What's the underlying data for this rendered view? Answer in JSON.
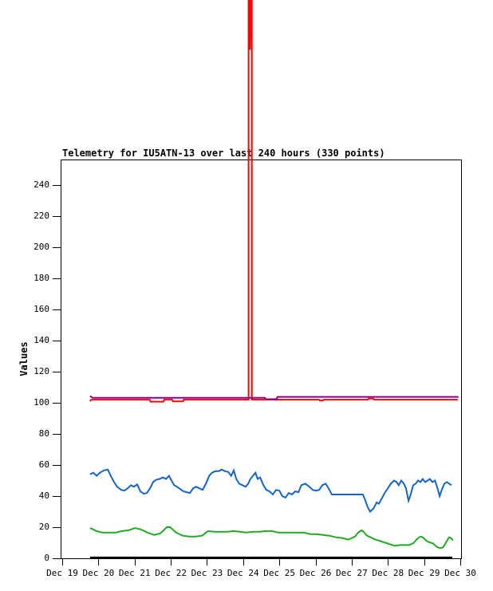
{
  "page": {
    "background": "#ffffff",
    "title": "Telemetry for IU5ATN-13 over last 240 hours (330 points)"
  },
  "chart_data": {
    "type": "line",
    "title": "Telemetry for IU5ATN-13 over last 240 hours (330 points)",
    "xlabel": "",
    "ylabel": "Values",
    "grid": false,
    "legend": "none",
    "ylim": [
      0,
      256.4
    ],
    "yticks": [
      0,
      20,
      40,
      60,
      80,
      100,
      120,
      140,
      160,
      180,
      200,
      220,
      240
    ],
    "xticks": [
      "Dec 19",
      "Dec 20",
      "Dec 21",
      "Dec 22",
      "Dec 23",
      "Dec 24",
      "Dec 25",
      "Dec 26",
      "Dec 27",
      "Dec 28",
      "Dec 29",
      "Dec 30"
    ],
    "x_unit": "days since Dec 19",
    "note_offscale": "red series spikes off-scale above chart top near Dec 24.2",
    "series": [
      {
        "name": "series-black",
        "color": "#000000",
        "width": 3,
        "points": [
          [
            0.77,
            0.3
          ],
          [
            10.78,
            0.3
          ]
        ]
      },
      {
        "name": "series-blue",
        "color": "#1565c8",
        "width": 2,
        "points": [
          [
            0.77,
            54
          ],
          [
            0.86,
            55
          ],
          [
            0.95,
            53
          ],
          [
            1.04,
            55
          ],
          [
            1.15,
            56.5
          ],
          [
            1.26,
            57
          ],
          [
            1.34,
            53
          ],
          [
            1.43,
            49
          ],
          [
            1.52,
            46
          ],
          [
            1.63,
            44
          ],
          [
            1.72,
            43.5
          ],
          [
            1.81,
            45
          ],
          [
            1.9,
            47
          ],
          [
            1.98,
            46
          ],
          [
            2.07,
            47.5
          ],
          [
            2.16,
            43
          ],
          [
            2.25,
            41.5
          ],
          [
            2.34,
            42
          ],
          [
            2.43,
            45
          ],
          [
            2.51,
            49
          ],
          [
            2.6,
            50.5
          ],
          [
            2.69,
            51
          ],
          [
            2.78,
            52
          ],
          [
            2.87,
            51
          ],
          [
            2.95,
            53
          ],
          [
            3.02,
            50
          ],
          [
            3.09,
            47
          ],
          [
            3.17,
            46
          ],
          [
            3.26,
            44.5
          ],
          [
            3.35,
            43
          ],
          [
            3.44,
            42.5
          ],
          [
            3.53,
            42
          ],
          [
            3.62,
            45
          ],
          [
            3.7,
            46
          ],
          [
            3.79,
            45
          ],
          [
            3.88,
            44
          ],
          [
            3.97,
            48
          ],
          [
            4.06,
            53
          ],
          [
            4.14,
            55
          ],
          [
            4.23,
            56
          ],
          [
            4.32,
            56
          ],
          [
            4.41,
            57
          ],
          [
            4.5,
            56
          ],
          [
            4.59,
            55.5
          ],
          [
            4.67,
            53
          ],
          [
            4.74,
            56.5
          ],
          [
            4.81,
            51
          ],
          [
            4.89,
            48
          ],
          [
            4.98,
            47
          ],
          [
            5.07,
            46
          ],
          [
            5.14,
            48
          ],
          [
            5.2,
            51
          ],
          [
            5.27,
            53
          ],
          [
            5.34,
            55
          ],
          [
            5.4,
            51
          ],
          [
            5.47,
            52
          ],
          [
            5.56,
            47
          ],
          [
            5.64,
            44
          ],
          [
            5.73,
            43
          ],
          [
            5.82,
            41
          ],
          [
            5.91,
            44
          ],
          [
            6,
            43.5
          ],
          [
            6.08,
            40
          ],
          [
            6.17,
            39
          ],
          [
            6.26,
            42
          ],
          [
            6.35,
            41
          ],
          [
            6.44,
            43
          ],
          [
            6.53,
            42.5
          ],
          [
            6.61,
            47
          ],
          [
            6.72,
            48
          ],
          [
            6.83,
            46
          ],
          [
            6.92,
            44
          ],
          [
            7.01,
            43.5
          ],
          [
            7.1,
            44
          ],
          [
            7.19,
            47
          ],
          [
            7.28,
            48
          ],
          [
            7.36,
            45
          ],
          [
            7.45,
            41
          ],
          [
            8.31,
            41
          ],
          [
            8.38,
            37
          ],
          [
            8.44,
            33
          ],
          [
            8.51,
            30
          ],
          [
            8.6,
            32
          ],
          [
            8.69,
            36
          ],
          [
            8.75,
            35
          ],
          [
            8.82,
            38
          ],
          [
            8.91,
            42
          ],
          [
            9,
            45
          ],
          [
            9.08,
            48
          ],
          [
            9.17,
            50
          ],
          [
            9.24,
            49
          ],
          [
            9.3,
            47
          ],
          [
            9.37,
            50
          ],
          [
            9.44,
            48
          ],
          [
            9.5,
            45
          ],
          [
            9.57,
            37
          ],
          [
            9.63,
            41
          ],
          [
            9.7,
            47
          ],
          [
            9.77,
            48
          ],
          [
            9.83,
            50
          ],
          [
            9.9,
            49
          ],
          [
            9.96,
            51
          ],
          [
            10.03,
            49
          ],
          [
            10.1,
            50
          ],
          [
            10.16,
            51
          ],
          [
            10.23,
            49
          ],
          [
            10.3,
            50
          ],
          [
            10.36,
            46
          ],
          [
            10.43,
            40
          ],
          [
            10.49,
            44
          ],
          [
            10.56,
            48
          ],
          [
            10.63,
            49
          ],
          [
            10.69,
            48
          ],
          [
            10.76,
            47
          ]
        ]
      },
      {
        "name": "series-green",
        "color": "#22aa22",
        "width": 2,
        "points": [
          [
            0.77,
            19.5
          ],
          [
            0.95,
            17.5
          ],
          [
            1.12,
            16.5
          ],
          [
            1.3,
            16.5
          ],
          [
            1.48,
            16.5
          ],
          [
            1.65,
            17.5
          ],
          [
            1.83,
            18
          ],
          [
            2.01,
            19.5
          ],
          [
            2.18,
            18.5
          ],
          [
            2.36,
            16.5
          ],
          [
            2.54,
            15
          ],
          [
            2.71,
            16
          ],
          [
            2.89,
            20
          ],
          [
            2.98,
            20
          ],
          [
            3.15,
            16.5
          ],
          [
            3.33,
            14.5
          ],
          [
            3.51,
            14
          ],
          [
            3.68,
            14
          ],
          [
            3.86,
            14.5
          ],
          [
            4.03,
            17.5
          ],
          [
            4.21,
            17
          ],
          [
            4.39,
            17
          ],
          [
            4.56,
            17
          ],
          [
            4.74,
            17.5
          ],
          [
            4.92,
            17
          ],
          [
            5.09,
            16.5
          ],
          [
            5.27,
            17
          ],
          [
            5.45,
            17
          ],
          [
            5.62,
            17.5
          ],
          [
            5.8,
            17.5
          ],
          [
            5.97,
            16.5
          ],
          [
            6.15,
            16.5
          ],
          [
            6.33,
            16.5
          ],
          [
            6.5,
            16.5
          ],
          [
            6.68,
            16.5
          ],
          [
            6.86,
            15.5
          ],
          [
            7.03,
            15.5
          ],
          [
            7.21,
            15
          ],
          [
            7.39,
            14.5
          ],
          [
            7.56,
            13.5
          ],
          [
            7.74,
            13
          ],
          [
            7.91,
            12
          ],
          [
            8.09,
            14
          ],
          [
            8.18,
            16.5
          ],
          [
            8.27,
            18
          ],
          [
            8.33,
            17
          ],
          [
            8.4,
            15
          ],
          [
            8.47,
            14
          ],
          [
            8.53,
            13.5
          ],
          [
            8.6,
            12.5
          ],
          [
            8.66,
            12
          ],
          [
            8.73,
            11.5
          ],
          [
            8.8,
            11
          ],
          [
            8.86,
            10.5
          ],
          [
            8.93,
            10
          ],
          [
            9,
            9.5
          ],
          [
            9.06,
            9
          ],
          [
            9.13,
            8.5
          ],
          [
            9.19,
            8
          ],
          [
            9.33,
            8.5
          ],
          [
            9.46,
            8.5
          ],
          [
            9.59,
            8.5
          ],
          [
            9.72,
            10
          ],
          [
            9.79,
            12
          ],
          [
            9.86,
            13.5
          ],
          [
            9.92,
            14
          ],
          [
            9.99,
            13
          ],
          [
            10.05,
            11.5
          ],
          [
            10.12,
            10.5
          ],
          [
            10.19,
            10
          ],
          [
            10.25,
            9.5
          ],
          [
            10.32,
            8
          ],
          [
            10.38,
            7
          ],
          [
            10.45,
            6.5
          ],
          [
            10.52,
            7
          ],
          [
            10.58,
            9
          ],
          [
            10.65,
            12
          ],
          [
            10.69,
            13.5
          ],
          [
            10.74,
            13
          ],
          [
            10.8,
            11.5
          ]
        ]
      },
      {
        "name": "series-red",
        "color": "#ff0000",
        "width": 2,
        "points": [
          [
            0.77,
            101
          ],
          [
            0.8,
            102
          ],
          [
            2.42,
            102
          ],
          [
            2.44,
            100.7
          ],
          [
            2.8,
            100.7
          ],
          [
            2.82,
            102
          ],
          [
            3.04,
            102
          ],
          [
            3.06,
            100.9
          ],
          [
            3.34,
            100.9
          ],
          [
            3.36,
            102
          ],
          [
            5.15,
            102
          ],
          [
            5.15,
            395
          ],
          [
            5.19,
            327
          ],
          [
            5.24,
            395
          ],
          [
            5.24,
            102
          ],
          [
            7.1,
            102
          ],
          [
            7.12,
            101.4
          ],
          [
            7.2,
            101.4
          ],
          [
            7.22,
            102
          ],
          [
            8.45,
            102
          ],
          [
            8.47,
            102.7
          ],
          [
            8.6,
            102.7
          ],
          [
            8.62,
            102
          ],
          [
            10.93,
            102
          ]
        ]
      },
      {
        "name": "series-purple",
        "color": "#880088",
        "width": 2,
        "points": [
          [
            0.77,
            104.3
          ],
          [
            0.84,
            103.2
          ],
          [
            5.6,
            103.2
          ],
          [
            5.63,
            102.3
          ],
          [
            5.92,
            102.3
          ],
          [
            5.95,
            103.8
          ],
          [
            10.95,
            103.8
          ]
        ]
      }
    ]
  }
}
